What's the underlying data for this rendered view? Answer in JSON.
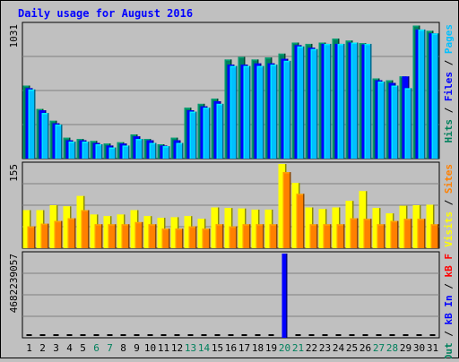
{
  "chart_data": [
    {
      "type": "bar",
      "title": "Daily usage for August 2016",
      "panel": "top",
      "categories": [
        "1",
        "2",
        "3",
        "4",
        "5",
        "6",
        "7",
        "8",
        "9",
        "10",
        "11",
        "12",
        "13",
        "14",
        "15",
        "16",
        "17",
        "18",
        "19",
        "20",
        "21",
        "22",
        "23",
        "24",
        "25",
        "26",
        "27",
        "28",
        "29",
        "30",
        "31"
      ],
      "weekend_days": [
        "6",
        "7",
        "13",
        "14",
        "20",
        "21",
        "27",
        "28"
      ],
      "ymax_label": "1031",
      "ylim": [
        0,
        1031
      ],
      "y_label_parts": [
        "Pages",
        " / ",
        "Files",
        " / ",
        "Hits"
      ],
      "series": [
        {
          "name": "Hits",
          "color": "#00805c",
          "values": [
            560,
            380,
            290,
            160,
            150,
            135,
            115,
            125,
            185,
            150,
            110,
            160,
            390,
            420,
            460,
            760,
            780,
            760,
            775,
            805,
            890,
            880,
            890,
            920,
            905,
            885,
            615,
            600,
            630,
            1020,
            980
          ]
        },
        {
          "name": "Files",
          "color": "#0000ff",
          "values": [
            540,
            370,
            270,
            140,
            140,
            120,
            100,
            115,
            170,
            140,
            100,
            140,
            370,
            400,
            440,
            720,
            720,
            730,
            730,
            765,
            870,
            850,
            880,
            880,
            890,
            875,
            600,
            580,
            630,
            990,
            960
          ]
        },
        {
          "name": "Pages",
          "color": "#00c0ff",
          "values": [
            530,
            350,
            260,
            130,
            130,
            110,
            85,
            100,
            150,
            120,
            95,
            120,
            360,
            390,
            420,
            710,
            710,
            710,
            720,
            750,
            860,
            840,
            880,
            880,
            890,
            880,
            590,
            560,
            540,
            990,
            960
          ]
        }
      ]
    },
    {
      "type": "bar",
      "panel": "middle",
      "ymax_label": "155",
      "ylim": [
        0,
        155
      ],
      "y_label_parts": [
        "Sites",
        " / ",
        "Visits"
      ],
      "series": [
        {
          "name": "Visits",
          "color": "#ffff00",
          "values": [
            70,
            70,
            79,
            77,
            96,
            62,
            59,
            62,
            70,
            59,
            56,
            57,
            59,
            54,
            75,
            74,
            73,
            71,
            71,
            155,
            120,
            75,
            72,
            75,
            87,
            105,
            74,
            64,
            78,
            79,
            80
          ]
        },
        {
          "name": "Sites",
          "color": "#ff8000",
          "values": [
            40,
            45,
            50,
            55,
            70,
            44,
            44,
            44,
            48,
            44,
            36,
            36,
            40,
            36,
            44,
            40,
            44,
            44,
            44,
            140,
            100,
            44,
            44,
            44,
            55,
            54,
            44,
            50,
            54,
            54,
            44
          ]
        }
      ]
    },
    {
      "type": "bar",
      "panel": "bottom",
      "ymax_label": "4682239057",
      "ylim": [
        0,
        4682239057
      ],
      "y_label_parts": [
        "kB F",
        " / ",
        "kB In",
        " / ",
        "kB Out"
      ],
      "series": [
        {
          "name": "kB F",
          "color": "#ff0000",
          "values": [
            0,
            0,
            0,
            0,
            0,
            0,
            0,
            0,
            0,
            0,
            0,
            0,
            0,
            0,
            0,
            0,
            0,
            0,
            0,
            0,
            0,
            0,
            0,
            0,
            0,
            0,
            0,
            0,
            0,
            0,
            0
          ]
        },
        {
          "name": "kB In",
          "color": "#0000ff",
          "values": [
            0,
            0,
            0,
            0,
            0,
            0,
            0,
            0,
            0,
            0,
            0,
            0,
            0,
            0,
            0,
            0,
            0,
            0,
            0,
            4682239057,
            0,
            0,
            0,
            0,
            0,
            0,
            0,
            0,
            0,
            0,
            0
          ]
        },
        {
          "name": "kB Out",
          "color": "#00805c",
          "values": [
            0,
            0,
            0,
            0,
            0,
            0,
            0,
            0,
            0,
            0,
            0,
            0,
            0,
            0,
            0,
            0,
            0,
            0,
            0,
            0,
            0,
            0,
            0,
            0,
            0,
            0,
            0,
            0,
            0,
            0,
            0
          ]
        }
      ]
    }
  ],
  "colors": {
    "title": "#0000ff",
    "weekday_label": "#000000",
    "weekend_label": "#00805c",
    "gridline": "#808080",
    "plot_bg": "#c0c0c0",
    "page_bg": "#c0c0c0"
  }
}
